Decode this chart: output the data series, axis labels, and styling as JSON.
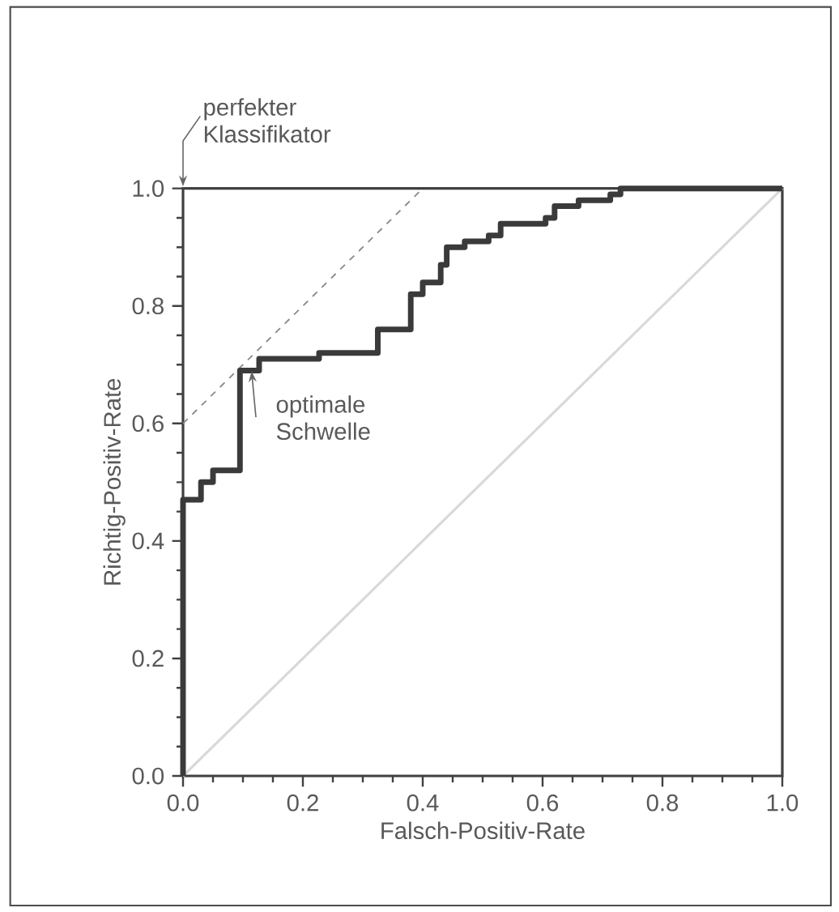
{
  "chart_data": {
    "type": "line",
    "xlabel": "Falsch-Positiv-Rate",
    "ylabel": "Richtig-Positiv-Rate",
    "xlim": [
      0,
      1
    ],
    "ylim": [
      0,
      1
    ],
    "xticks": [
      {
        "value": 0,
        "label": "0.0"
      },
      0.2,
      0.4,
      0.6,
      0.8,
      {
        "value": 1,
        "label": "1.0"
      }
    ],
    "yticks": [
      {
        "value": 0,
        "label": "0.0"
      },
      0.2,
      0.4,
      0.6,
      0.8,
      {
        "value": 1,
        "label": "1.0"
      }
    ],
    "series": [
      {
        "color": "#d9d9d9",
        "line_style": "solid",
        "x": [
          0,
          1
        ],
        "values": [
          0,
          1
        ]
      },
      {
        "color": "#8a8a8a",
        "line_style": "dashed",
        "x": [
          0,
          0.4
        ],
        "values": [
          0.6,
          1.0
        ]
      },
      {
        "color": "#3a3a3a",
        "line_style": "solid",
        "x": [
          0,
          0,
          0.03,
          0.03,
          0.05,
          0.05,
          0.095,
          0.095,
          0.127,
          0.127,
          0.227,
          0.227,
          0.325,
          0.325,
          0.38,
          0.38,
          0.4,
          0.4,
          0.43,
          0.43,
          0.44,
          0.44,
          0.47,
          0.47,
          0.51,
          0.51,
          0.53,
          0.53,
          0.605,
          0.605,
          0.62,
          0.62,
          0.66,
          0.66,
          0.713,
          0.713,
          0.73,
          0.73,
          1.0
        ],
        "values": [
          0,
          0.47,
          0.47,
          0.5,
          0.5,
          0.52,
          0.52,
          0.69,
          0.69,
          0.71,
          0.71,
          0.72,
          0.72,
          0.76,
          0.76,
          0.82,
          0.82,
          0.84,
          0.84,
          0.87,
          0.87,
          0.9,
          0.9,
          0.91,
          0.91,
          0.92,
          0.92,
          0.94,
          0.94,
          0.95,
          0.95,
          0.97,
          0.97,
          0.98,
          0.98,
          0.99,
          0.99,
          1.0,
          1.0
        ]
      }
    ],
    "annotations": [
      "perfekter Klassifikator",
      {
        "text": "optimale Schwelle",
        "x": 0.1,
        "y": 0.7
      }
    ],
    "marker": "none"
  }
}
